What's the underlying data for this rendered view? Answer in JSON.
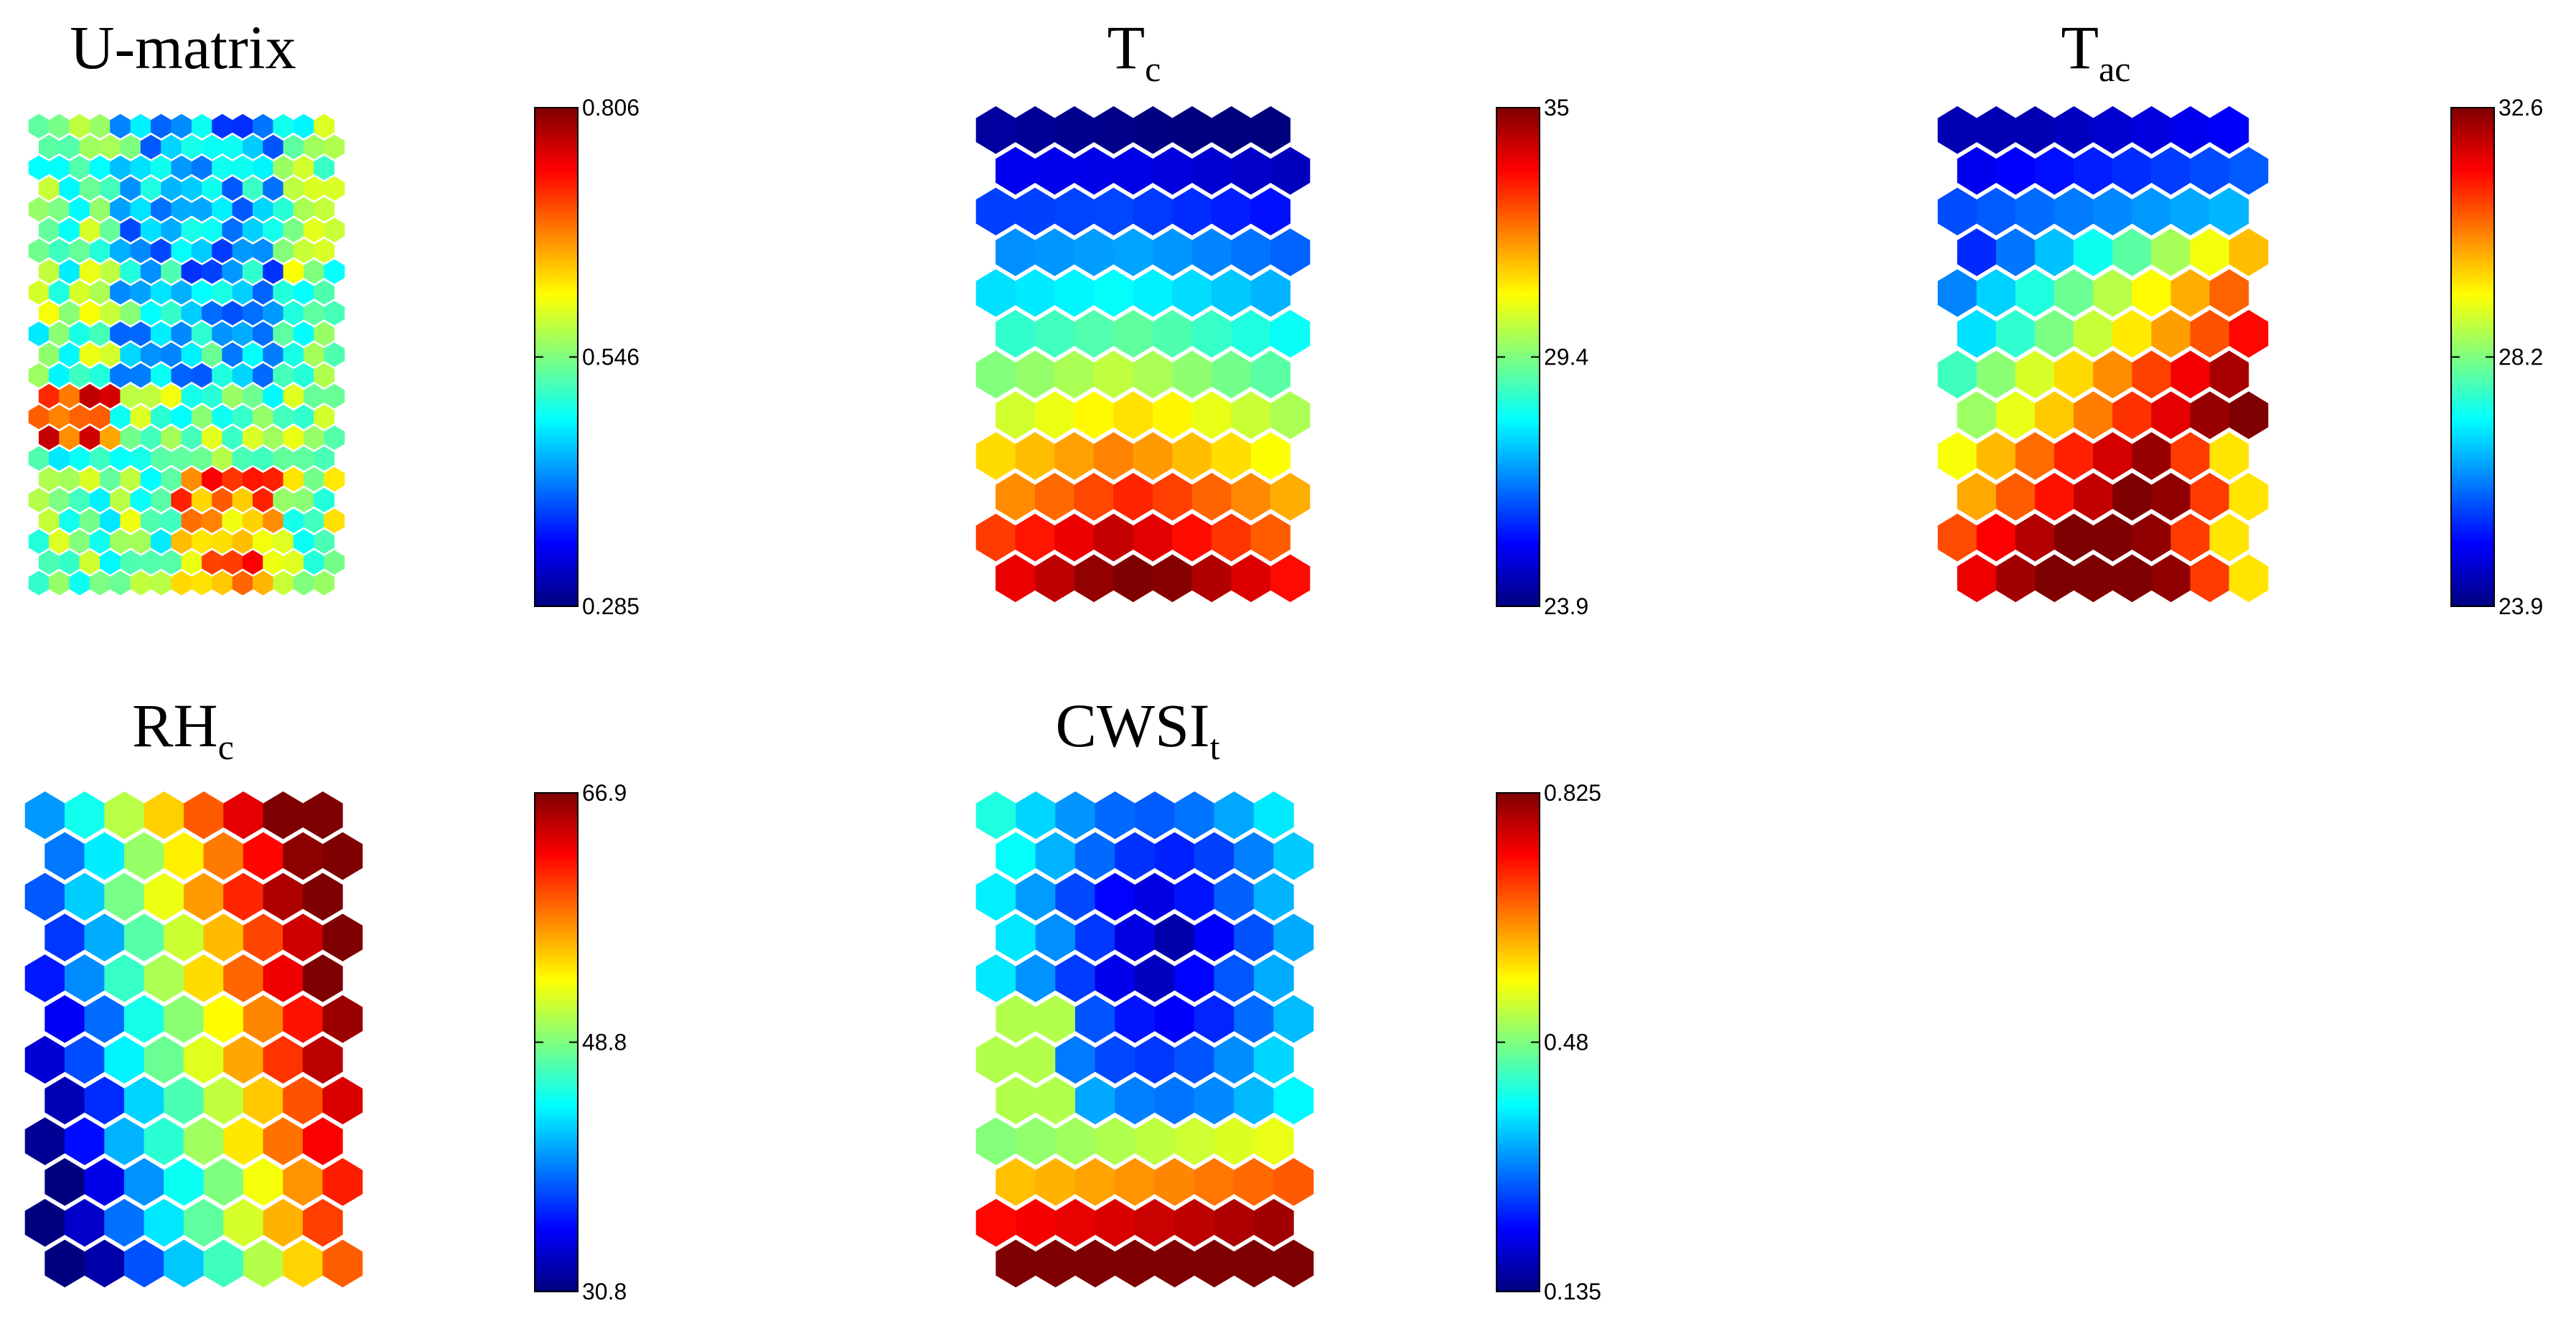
{
  "figure": {
    "description_free": true,
    "colormap": "jet",
    "colormap_stops": [
      "#00007f",
      "#0000ff",
      "#007fff",
      "#00ffff",
      "#7fff7f",
      "#ffff00",
      "#ff7f00",
      "#ff0000",
      "#7f0000"
    ]
  },
  "chart_data": [
    {
      "type": "heatmap",
      "grid": "hexagonal",
      "title": "U-matrix",
      "title_sub": "",
      "ticks": [
        "0.806",
        "0.546",
        "0.285"
      ],
      "range": [
        0.285,
        0.806
      ],
      "rows": 23,
      "cols": 15,
      "field": "umatrix"
    },
    {
      "type": "heatmap",
      "grid": "hexagonal",
      "title": "T",
      "title_sub": "c",
      "ticks": [
        "35",
        "29.4",
        "23.9"
      ],
      "range": [
        23.9,
        35
      ],
      "rows": 12,
      "cols": 8,
      "field": "tc"
    },
    {
      "type": "heatmap",
      "grid": "hexagonal",
      "title": "T",
      "title_sub": "ac",
      "ticks": [
        "32.6",
        "28.2",
        "23.9"
      ],
      "range": [
        23.9,
        32.6
      ],
      "rows": 12,
      "cols": 8,
      "field": "tac"
    },
    {
      "type": "heatmap",
      "grid": "hexagonal",
      "title": "RH",
      "title_sub": "c",
      "ticks": [
        "66.9",
        "48.8",
        "30.8"
      ],
      "range": [
        30.8,
        66.9
      ],
      "rows": 12,
      "cols": 8,
      "field": "rhc"
    },
    {
      "type": "heatmap",
      "grid": "hexagonal",
      "title": "CWSI",
      "title_sub": "t",
      "ticks": [
        "0.825",
        "0.48",
        "0.135"
      ],
      "range": [
        0.135,
        0.825
      ],
      "rows": 12,
      "cols": 8,
      "field": "cwsi"
    }
  ]
}
